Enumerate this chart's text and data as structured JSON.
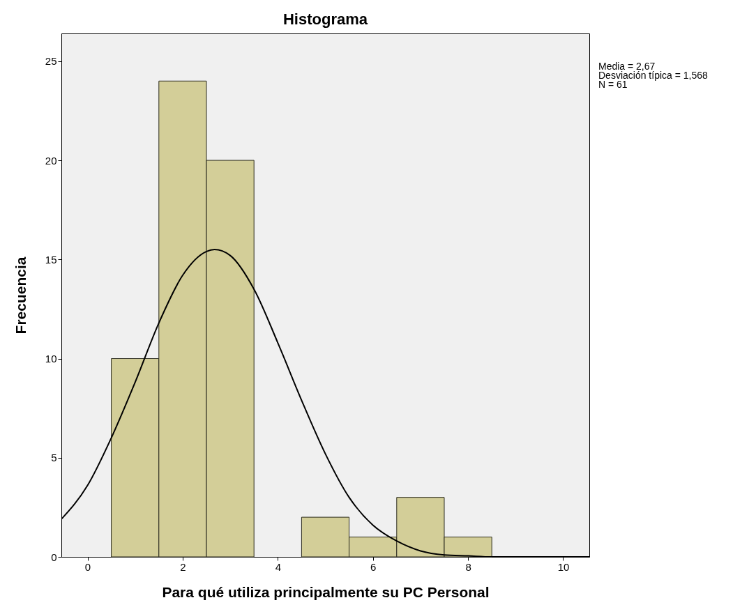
{
  "chart_data": {
    "type": "histogram",
    "title": "Histograma",
    "xlabel": "Para qué utiliza principalmente su PC Personal",
    "ylabel": "Frecuencia",
    "bins": [
      0.5,
      1.5,
      2.5,
      3.5,
      4.5,
      5.5,
      6.5,
      7.5,
      8.5
    ],
    "series": [
      {
        "color": "#d3ce98",
        "values": [
          10,
          24,
          20,
          0,
          2,
          1,
          3,
          1
        ]
      },
      {
        "type": "line",
        "color": "#000000",
        "x": [
          -0.55,
          0,
          0.5,
          1,
          1.5,
          2,
          2.5,
          2.67,
          3,
          3.5,
          4,
          4.5,
          5,
          5.5,
          6,
          6.5,
          7,
          7.5,
          8,
          8.5,
          9,
          10,
          10.55
        ],
        "values": [
          1.9,
          3.6,
          6.0,
          8.8,
          11.8,
          14.2,
          15.4,
          15.5,
          15.2,
          13.5,
          10.8,
          7.9,
          5.2,
          3.0,
          1.6,
          0.8,
          0.3,
          0.1,
          0.05,
          0,
          0,
          0,
          0
        ]
      }
    ],
    "xlim": [
      -0.55,
      10.55
    ],
    "xticks": [
      0,
      2,
      4,
      6,
      8,
      10
    ],
    "ylim": [
      0,
      26.4
    ],
    "yticks": [
      0,
      5,
      10,
      15,
      20,
      25
    ],
    "grid": false,
    "annotations": [
      "Media = 2,67",
      "Desviación típica = 1,568",
      "N = 61"
    ]
  }
}
